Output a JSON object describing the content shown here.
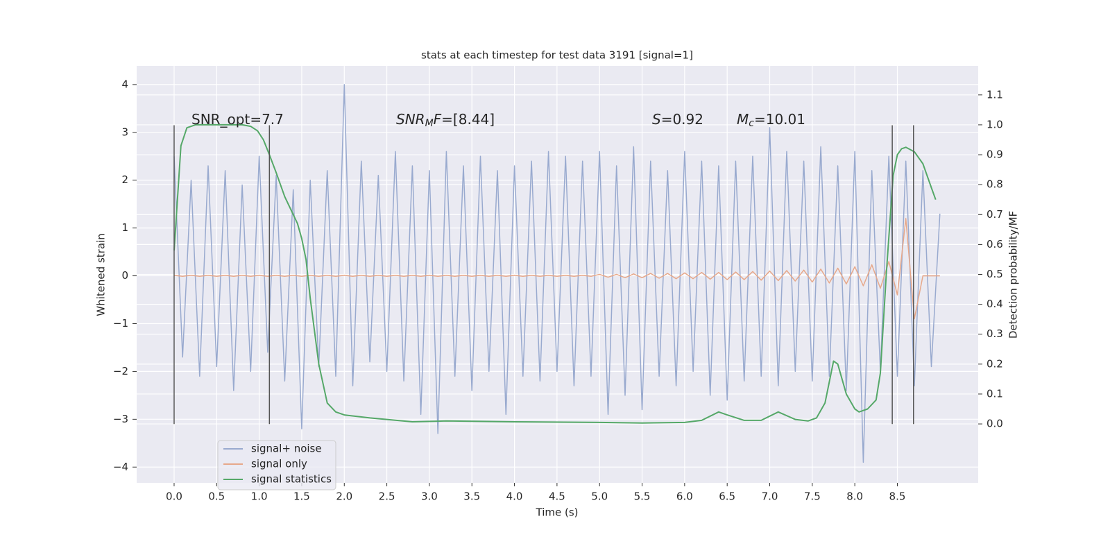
{
  "chart_data": {
    "type": "line",
    "title": "stats at each timestep for test data 3191 [signal=1]",
    "xlabel": "Time (s)",
    "ylabel": "Whitened strain",
    "y2label": "Detection probability/MF",
    "xlim": [
      -0.44,
      9.45
    ],
    "ylim": [
      -4.33,
      4.39
    ],
    "y2lim": [
      -0.197,
      1.197
    ],
    "xticks": [
      {
        "value": 0,
        "label": "0.0"
      },
      {
        "value": 0.5,
        "label": "0.5"
      },
      {
        "value": 1,
        "label": "1.0"
      },
      {
        "value": 1.5,
        "label": "1.5"
      },
      {
        "value": 2,
        "label": "2.0"
      },
      {
        "value": 2.5,
        "label": "2.5"
      },
      {
        "value": 3,
        "label": "3.0"
      },
      {
        "value": 3.5,
        "label": "3.5"
      },
      {
        "value": 4,
        "label": "4.0"
      },
      {
        "value": 4.5,
        "label": "4.5"
      },
      {
        "value": 5,
        "label": "5.0"
      },
      {
        "value": 5.5,
        "label": "5.5"
      },
      {
        "value": 6,
        "label": "6.0"
      },
      {
        "value": 6.5,
        "label": "6.5"
      },
      {
        "value": 7,
        "label": "7.0"
      },
      {
        "value": 7.5,
        "label": "7.5"
      },
      {
        "value": 8,
        "label": "8.0"
      },
      {
        "value": 8.5,
        "label": "8.5"
      }
    ],
    "yticks": [
      {
        "value": -4,
        "label": "−4"
      },
      {
        "value": -3,
        "label": "−3"
      },
      {
        "value": -2,
        "label": "−2"
      },
      {
        "value": -1,
        "label": "−1"
      },
      0,
      1,
      2,
      3,
      4
    ],
    "y2ticks": [
      {
        "value": 0,
        "label": "0.0"
      },
      {
        "value": 0.1,
        "label": "0.1"
      },
      {
        "value": 0.2,
        "label": "0.2"
      },
      {
        "value": 0.3,
        "label": "0.3"
      },
      {
        "value": 0.4,
        "label": "0.4"
      },
      {
        "value": 0.5,
        "label": "0.5"
      },
      {
        "value": 0.6,
        "label": "0.6"
      },
      {
        "value": 0.7,
        "label": "0.7"
      },
      {
        "value": 0.8,
        "label": "0.8"
      },
      {
        "value": 0.9,
        "label": "0.9"
      },
      {
        "value": 1,
        "label": "1.0"
      },
      {
        "value": 1.1,
        "label": "1.1"
      }
    ],
    "grid": true,
    "legend": "lower left",
    "series": [
      {
        "name": "signal+ noise",
        "color": "#99aacf",
        "x": [
          0,
          0.1,
          0.2,
          0.3,
          0.4,
          0.5,
          0.6,
          0.7,
          0.8,
          0.9,
          1,
          1.1,
          1.2,
          1.3,
          1.4,
          1.5,
          1.6,
          1.7,
          1.8,
          1.9,
          2,
          2.1,
          2.2,
          2.3,
          2.4,
          2.5,
          2.6,
          2.7,
          2.8,
          2.9,
          3,
          3.1,
          3.2,
          3.3,
          3.4,
          3.5,
          3.6,
          3.7,
          3.8,
          3.9,
          4,
          4.1,
          4.2,
          4.3,
          4.4,
          4.5,
          4.6,
          4.7,
          4.8,
          4.9,
          5,
          5.1,
          5.2,
          5.3,
          5.4,
          5.5,
          5.6,
          5.7,
          5.8,
          5.9,
          6,
          6.1,
          6.2,
          6.3,
          6.4,
          6.5,
          6.6,
          6.7,
          6.8,
          6.9,
          7,
          7.1,
          7.2,
          7.3,
          7.4,
          7.5,
          7.6,
          7.7,
          7.8,
          7.9,
          8,
          8.1,
          8.2,
          8.3,
          8.4,
          8.5,
          8.6,
          8.7,
          8.8,
          8.9,
          9
        ],
        "values": [
          2.5,
          -1.7,
          2.0,
          -2.1,
          2.3,
          -1.9,
          2.2,
          -2.4,
          1.9,
          -2.0,
          2.5,
          -1.6,
          2.1,
          -2.2,
          1.8,
          -3.2,
          2.0,
          -1.9,
          2.2,
          -2.1,
          4.0,
          -2.3,
          2.4,
          -1.8,
          2.1,
          -2.0,
          2.6,
          -2.2,
          2.3,
          -2.9,
          2.2,
          -3.3,
          2.6,
          -2.1,
          2.3,
          -2.4,
          2.5,
          -2.0,
          2.2,
          -2.9,
          2.3,
          -2.1,
          2.4,
          -2.2,
          2.6,
          -2.0,
          2.5,
          -2.3,
          2.4,
          -2.1,
          2.6,
          -2.9,
          2.3,
          -2.5,
          2.7,
          -2.8,
          2.4,
          -2.1,
          2.2,
          -2.3,
          2.6,
          -2.0,
          2.4,
          -2.5,
          2.3,
          -2.6,
          2.4,
          -2.2,
          2.5,
          -2.1,
          3.1,
          -2.3,
          2.6,
          -2.0,
          2.4,
          -2.2,
          2.7,
          -2.1,
          2.3,
          -2.4,
          2.6,
          -3.9,
          2.2,
          -2.0,
          2.5,
          -2.1,
          2.4,
          -2.3,
          2.2,
          -1.9,
          1.3
        ]
      },
      {
        "name": "signal only",
        "color": "#e7a88a",
        "x": [
          0,
          0.1,
          0.2,
          0.3,
          0.4,
          0.5,
          0.6,
          0.7,
          0.8,
          0.9,
          1,
          1.1,
          1.2,
          1.3,
          1.4,
          1.5,
          1.6,
          1.7,
          1.8,
          1.9,
          2,
          2.1,
          2.2,
          2.3,
          2.4,
          2.5,
          2.6,
          2.7,
          2.8,
          2.9,
          3,
          3.1,
          3.2,
          3.3,
          3.4,
          3.5,
          3.6,
          3.7,
          3.8,
          3.9,
          4,
          4.1,
          4.2,
          4.3,
          4.4,
          4.5,
          4.6,
          4.7,
          4.8,
          4.9,
          5,
          5.1,
          5.2,
          5.3,
          5.4,
          5.5,
          5.6,
          5.7,
          5.8,
          5.9,
          6,
          6.1,
          6.2,
          6.3,
          6.4,
          6.5,
          6.6,
          6.7,
          6.8,
          6.9,
          7,
          7.1,
          7.2,
          7.3,
          7.4,
          7.5,
          7.6,
          7.7,
          7.8,
          7.9,
          8,
          8.1,
          8.2,
          8.3,
          8.4,
          8.5,
          8.6,
          8.7,
          8.8,
          8.9,
          9
        ],
        "values": [
          0.01,
          -0.01,
          0.01,
          -0.01,
          0.01,
          -0.01,
          0.01,
          -0.01,
          0.01,
          -0.01,
          0.01,
          -0.01,
          0.01,
          -0.01,
          0.01,
          -0.01,
          0.01,
          -0.01,
          0.01,
          -0.01,
          0.01,
          -0.01,
          0.01,
          -0.01,
          0.01,
          -0.01,
          0.01,
          -0.01,
          0.01,
          -0.01,
          0.01,
          -0.01,
          0.01,
          -0.01,
          0.01,
          -0.01,
          0.01,
          -0.01,
          0.01,
          -0.01,
          0.01,
          -0.01,
          0.01,
          -0.01,
          0.01,
          -0.01,
          0.01,
          -0.01,
          0.01,
          -0.01,
          0.03,
          -0.03,
          0.03,
          -0.04,
          0.04,
          -0.04,
          0.05,
          -0.05,
          0.05,
          -0.06,
          0.06,
          -0.06,
          0.07,
          -0.07,
          0.07,
          -0.08,
          0.08,
          -0.08,
          0.09,
          -0.09,
          0.1,
          -0.1,
          0.11,
          -0.11,
          0.12,
          -0.13,
          0.14,
          -0.15,
          0.16,
          -0.17,
          0.19,
          -0.21,
          0.23,
          -0.26,
          0.3,
          -0.4,
          1.2,
          -0.9,
          0.0,
          0.0,
          0.0
        ]
      },
      {
        "name": "signal statistics",
        "color": "#55a868",
        "axis": "y2",
        "x": [
          0,
          0.08,
          0.15,
          0.25,
          0.4,
          0.6,
          0.8,
          0.9,
          0.98,
          1.05,
          1.12,
          1.2,
          1.3,
          1.45,
          1.5,
          1.55,
          1.6,
          1.7,
          1.8,
          1.9,
          2.0,
          2.3,
          2.8,
          3.2,
          4.0,
          5.0,
          5.5,
          6.0,
          6.2,
          6.4,
          6.5,
          6.7,
          6.9,
          7.1,
          7.3,
          7.45,
          7.55,
          7.65,
          7.75,
          7.8,
          7.9,
          8.0,
          8.05,
          8.15,
          8.25,
          8.3,
          8.37,
          8.45,
          8.5,
          8.55,
          8.6,
          8.7,
          8.8,
          8.9,
          8.95
        ],
        "values": [
          0.58,
          0.93,
          0.99,
          1.0,
          1.0,
          1.0,
          1.0,
          0.995,
          0.98,
          0.95,
          0.9,
          0.84,
          0.76,
          0.67,
          0.62,
          0.55,
          0.42,
          0.2,
          0.07,
          0.04,
          0.03,
          0.02,
          0.007,
          0.01,
          0.007,
          0.005,
          0.003,
          0.005,
          0.012,
          0.04,
          0.03,
          0.012,
          0.012,
          0.04,
          0.015,
          0.01,
          0.02,
          0.07,
          0.21,
          0.2,
          0.1,
          0.05,
          0.04,
          0.05,
          0.08,
          0.17,
          0.5,
          0.83,
          0.9,
          0.92,
          0.925,
          0.91,
          0.87,
          0.79,
          0.75
        ]
      }
    ],
    "vlines": {
      "x": [
        0,
        1.12,
        8.44,
        8.69
      ],
      "ymin": -3.1,
      "ymax": 3.15,
      "color": "#555555"
    },
    "annotations": [
      [
        {
          "text": "SNR_opt=7.7"
        }
      ],
      [
        {
          "text": "SNR",
          "style": "italic"
        },
        {
          "text": "M",
          "style": "sub"
        },
        {
          "text": "F",
          "style": "italic"
        },
        {
          "text": "=[8.44]"
        }
      ],
      [
        {
          "text": "S",
          "style": "italic"
        },
        {
          "text": "=0.92"
        }
      ],
      [
        {
          "text": "M",
          "style": "italic"
        },
        {
          "text": "c",
          "style": "sub"
        },
        {
          "text": "=10.01"
        }
      ]
    ]
  }
}
